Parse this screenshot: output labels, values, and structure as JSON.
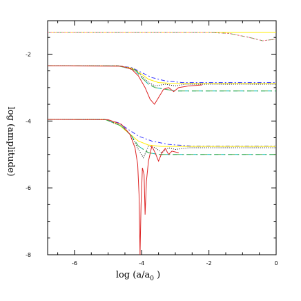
{
  "chart_data": {
    "type": "line",
    "xlabel": "log (a/a",
    "xlabel_sub": "0",
    "xlabel_tail": " )",
    "ylabel": "log (amplitude)",
    "xlim": [
      -6.8,
      0
    ],
    "ylim": [
      -8,
      -1
    ],
    "x_ticks": [
      {
        "value": -6,
        "label": "-6"
      },
      {
        "value": -4,
        "label": "-4"
      },
      {
        "value": -2,
        "label": "-2"
      },
      {
        "value": 0,
        "label": "0"
      }
    ],
    "y_ticks": [
      {
        "value": -2,
        "label": "-2"
      },
      {
        "value": -4,
        "label": "-4"
      },
      {
        "value": -6,
        "label": "-6"
      },
      {
        "value": -8,
        "label": "-8"
      }
    ],
    "grid": false,
    "legend": "none",
    "series": [
      {
        "color": "#ffee00",
        "dash": "",
        "points": [
          [
            -6.8,
            -1.35
          ],
          [
            -2.0,
            -1.35
          ],
          [
            0,
            -1.35
          ]
        ]
      },
      {
        "color": "#44aa44",
        "dash": "6,3,2,3",
        "points": [
          [
            -6.8,
            -1.35
          ],
          [
            -2.0,
            -1.35
          ],
          [
            -1.4,
            -1.38
          ],
          [
            -0.8,
            -1.5
          ],
          [
            -0.4,
            -1.6
          ],
          [
            0,
            -1.55
          ]
        ]
      },
      {
        "color": "#ff6688",
        "dash": "2,2",
        "points": [
          [
            -6.8,
            -1.35
          ],
          [
            -2.0,
            -1.35
          ],
          [
            -1.4,
            -1.38
          ],
          [
            -0.8,
            -1.5
          ],
          [
            -0.4,
            -1.6
          ],
          [
            0,
            -1.55
          ]
        ]
      },
      {
        "color": "#3333ff",
        "dash": "6,3,2,3",
        "points": [
          [
            -6.8,
            -2.35
          ],
          [
            -4.7,
            -2.35
          ],
          [
            -4.3,
            -2.4
          ],
          [
            -4.0,
            -2.55
          ],
          [
            -3.7,
            -2.7
          ],
          [
            -3.3,
            -2.8
          ],
          [
            -2.8,
            -2.85
          ],
          [
            0,
            -2.85
          ]
        ]
      },
      {
        "color": "#ffee00",
        "dash": "",
        "points": [
          [
            -6.8,
            -2.35
          ],
          [
            -4.7,
            -2.35
          ],
          [
            -4.3,
            -2.42
          ],
          [
            -4.0,
            -2.6
          ],
          [
            -3.8,
            -2.75
          ],
          [
            -3.5,
            -2.85
          ],
          [
            -3.0,
            -2.88
          ],
          [
            0,
            -2.88
          ]
        ]
      },
      {
        "color": "#000000",
        "dash": "1,2",
        "points": [
          [
            -6.8,
            -2.35
          ],
          [
            -4.7,
            -2.35
          ],
          [
            -4.2,
            -2.45
          ],
          [
            -4.0,
            -2.65
          ],
          [
            -3.8,
            -2.85
          ],
          [
            -3.6,
            -2.95
          ],
          [
            -3.3,
            -2.9
          ],
          [
            -3.0,
            -2.95
          ],
          [
            -2.7,
            -2.9
          ],
          [
            -2.3,
            -2.9
          ],
          [
            0,
            -2.9
          ]
        ]
      },
      {
        "color": "#00bbbb",
        "dash": "6,4",
        "points": [
          [
            -6.8,
            -2.35
          ],
          [
            -4.7,
            -2.35
          ],
          [
            -4.2,
            -2.48
          ],
          [
            -4.0,
            -2.7
          ],
          [
            -3.8,
            -2.9
          ],
          [
            -3.6,
            -3.0
          ],
          [
            -3.3,
            -3.05
          ],
          [
            -3.0,
            -3.1
          ],
          [
            -2.5,
            -3.1
          ],
          [
            0,
            -3.1
          ]
        ]
      },
      {
        "color": "#44aa44",
        "dash": "10,4,2,4",
        "points": [
          [
            -6.8,
            -2.35
          ],
          [
            -4.7,
            -2.35
          ],
          [
            -4.2,
            -2.48
          ],
          [
            -4.0,
            -2.7
          ],
          [
            -3.8,
            -2.9
          ],
          [
            -3.6,
            -3.0
          ],
          [
            -3.3,
            -3.05
          ],
          [
            -3.0,
            -3.1
          ],
          [
            -2.5,
            -3.1
          ],
          [
            0,
            -3.1
          ]
        ]
      },
      {
        "color": "#dd2222",
        "dash": "",
        "points": [
          [
            -6.8,
            -2.35
          ],
          [
            -4.6,
            -2.36
          ],
          [
            -4.3,
            -2.45
          ],
          [
            -4.1,
            -2.65
          ],
          [
            -3.9,
            -3.0
          ],
          [
            -3.75,
            -3.35
          ],
          [
            -3.62,
            -3.5
          ],
          [
            -3.5,
            -3.3
          ],
          [
            -3.35,
            -3.05
          ],
          [
            -3.2,
            -3.0
          ],
          [
            -3.05,
            -3.12
          ],
          [
            -2.9,
            -3.0
          ],
          [
            -2.6,
            -2.95
          ],
          [
            -2.2,
            -2.92
          ]
        ]
      },
      {
        "color": "#3333ff",
        "dash": "6,3,2,3",
        "points": [
          [
            -6.8,
            -3.95
          ],
          [
            -5.1,
            -3.95
          ],
          [
            -4.7,
            -4.05
          ],
          [
            -4.4,
            -4.25
          ],
          [
            -4.1,
            -4.45
          ],
          [
            -3.7,
            -4.6
          ],
          [
            -3.2,
            -4.7
          ],
          [
            -2.5,
            -4.75
          ],
          [
            0,
            -4.75
          ]
        ]
      },
      {
        "color": "#ffee00",
        "dash": "",
        "points": [
          [
            -6.8,
            -3.95
          ],
          [
            -5.1,
            -3.95
          ],
          [
            -4.7,
            -4.1
          ],
          [
            -4.4,
            -4.35
          ],
          [
            -4.1,
            -4.6
          ],
          [
            -3.8,
            -4.72
          ],
          [
            -3.4,
            -4.76
          ],
          [
            -2.8,
            -4.76
          ],
          [
            0,
            -4.76
          ]
        ]
      },
      {
        "color": "#000000",
        "dash": "1,2",
        "points": [
          [
            -6.8,
            -3.95
          ],
          [
            -5.1,
            -3.95
          ],
          [
            -4.6,
            -4.15
          ],
          [
            -4.3,
            -4.45
          ],
          [
            -4.1,
            -4.85
          ],
          [
            -3.95,
            -5.1
          ],
          [
            -3.8,
            -4.75
          ],
          [
            -3.6,
            -4.8
          ],
          [
            -3.4,
            -4.95
          ],
          [
            -3.2,
            -4.8
          ],
          [
            -3.0,
            -4.85
          ],
          [
            -2.6,
            -4.8
          ],
          [
            0,
            -4.8
          ]
        ]
      },
      {
        "color": "#00bbbb",
        "dash": "6,4",
        "points": [
          [
            -6.8,
            -3.95
          ],
          [
            -5.1,
            -3.95
          ],
          [
            -4.6,
            -4.15
          ],
          [
            -4.3,
            -4.45
          ],
          [
            -4.1,
            -4.75
          ],
          [
            -3.8,
            -4.95
          ],
          [
            -3.5,
            -5.0
          ],
          [
            -3.0,
            -5.0
          ],
          [
            0,
            -5.0
          ]
        ]
      },
      {
        "color": "#44aa44",
        "dash": "10,4,2,4",
        "points": [
          [
            -6.8,
            -3.95
          ],
          [
            -5.1,
            -3.95
          ],
          [
            -4.6,
            -4.15
          ],
          [
            -4.3,
            -4.45
          ],
          [
            -4.1,
            -4.75
          ],
          [
            -3.8,
            -4.95
          ],
          [
            -3.5,
            -5.0
          ],
          [
            -3.0,
            -5.0
          ],
          [
            0,
            -5.0
          ]
        ]
      },
      {
        "color": "#dd2222",
        "dash": "",
        "points": [
          [
            -6.8,
            -3.95
          ],
          [
            -5.0,
            -3.96
          ],
          [
            -4.6,
            -4.1
          ],
          [
            -4.35,
            -4.4
          ],
          [
            -4.2,
            -4.8
          ],
          [
            -4.12,
            -5.3
          ],
          [
            -4.08,
            -6.2
          ],
          [
            -4.05,
            -8.0
          ],
          [
            -4.02,
            -6.5
          ],
          [
            -3.98,
            -5.4
          ],
          [
            -3.93,
            -5.6
          ],
          [
            -3.9,
            -6.8
          ],
          [
            -3.86,
            -5.8
          ],
          [
            -3.8,
            -5.2
          ],
          [
            -3.7,
            -4.75
          ],
          [
            -3.6,
            -4.95
          ],
          [
            -3.5,
            -5.2
          ],
          [
            -3.4,
            -4.95
          ],
          [
            -3.3,
            -4.82
          ],
          [
            -3.2,
            -5.0
          ],
          [
            -3.1,
            -4.9
          ],
          [
            -2.9,
            -4.95
          ]
        ]
      }
    ]
  }
}
